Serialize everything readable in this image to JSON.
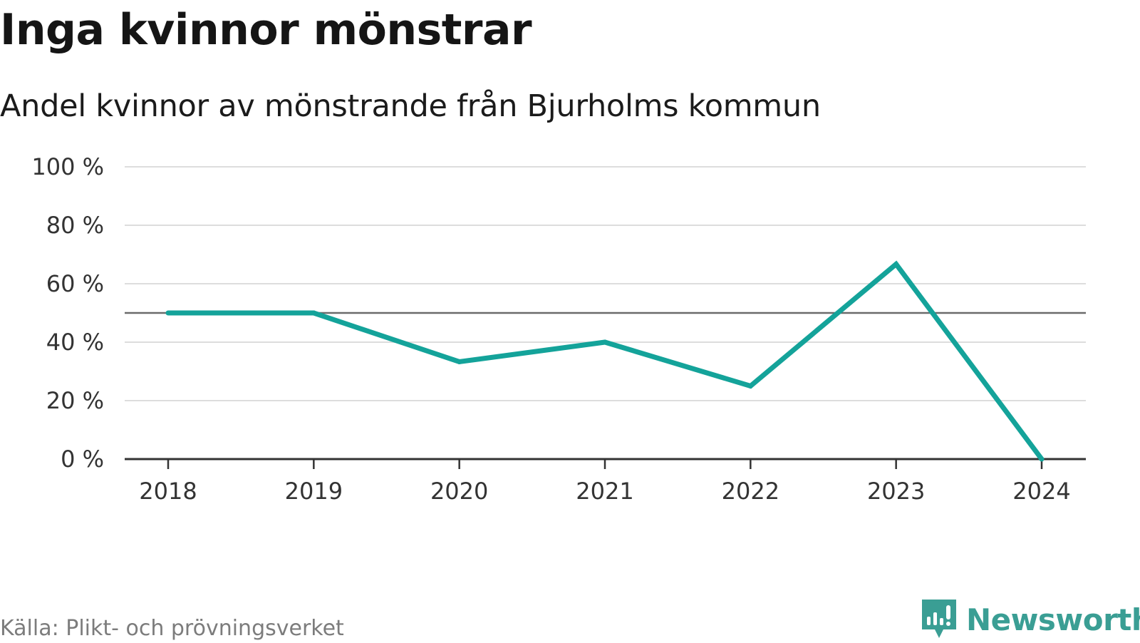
{
  "title": "Inga kvinnor mönstrar",
  "subtitle": "Andel kvinnor av mönstrande från Bjurholms kommun",
  "source": "Källa: Plikt- och prövningsverket",
  "brand": {
    "name": "Newsworthy",
    "icon": "newsworthy-logo-icon",
    "color": "#3a9e94"
  },
  "chart_data": {
    "type": "line",
    "x": [
      "2018",
      "2019",
      "2020",
      "2021",
      "2022",
      "2023",
      "2024"
    ],
    "series": [
      {
        "values": [
          50,
          50,
          33.3,
          40,
          25,
          66.7,
          0
        ],
        "color": "#14a39a"
      }
    ],
    "ylim": [
      0,
      100
    ],
    "yticks": [
      0,
      20,
      40,
      60,
      80,
      100
    ],
    "ytick_labels": [
      "0 %",
      "20 %",
      "40 %",
      "60 %",
      "80 %",
      "100 %"
    ],
    "reference_line": 50,
    "grid": true,
    "legend": "none"
  }
}
